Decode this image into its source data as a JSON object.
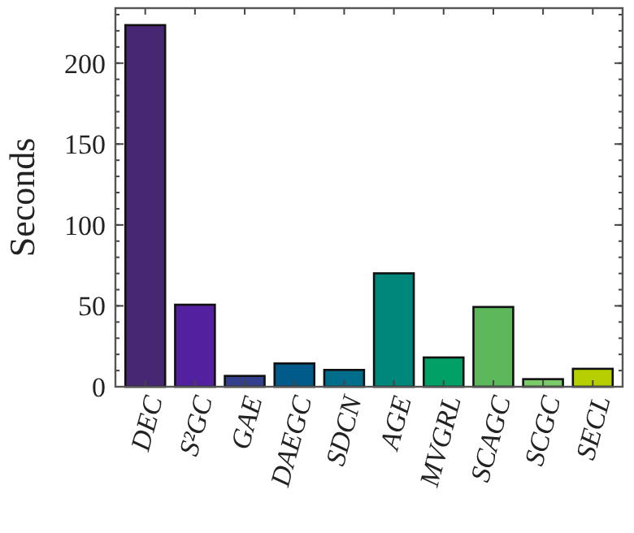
{
  "chart_data": {
    "type": "bar",
    "ylabel": "Seconds",
    "categories": [
      "DEC",
      "S²GC",
      "GAE",
      "DAEGC",
      "SDCN",
      "AGE",
      "MVGRL",
      "SCAGC",
      "SCGC",
      "SECL"
    ],
    "values": [
      223.5,
      50.7,
      6.7,
      14.4,
      10.4,
      70.1,
      18.1,
      49.3,
      4.7,
      11.1
    ],
    "colors": [
      "#472673",
      "#5321a0",
      "#35408c",
      "#005a8a",
      "#006d8a",
      "#00877c",
      "#00a066",
      "#5cb85a",
      "#7ccb6a",
      "#b5cf00"
    ],
    "ylim": [
      0,
      234
    ],
    "yticks": [
      0,
      50,
      100,
      150,
      200
    ],
    "grid": false
  }
}
